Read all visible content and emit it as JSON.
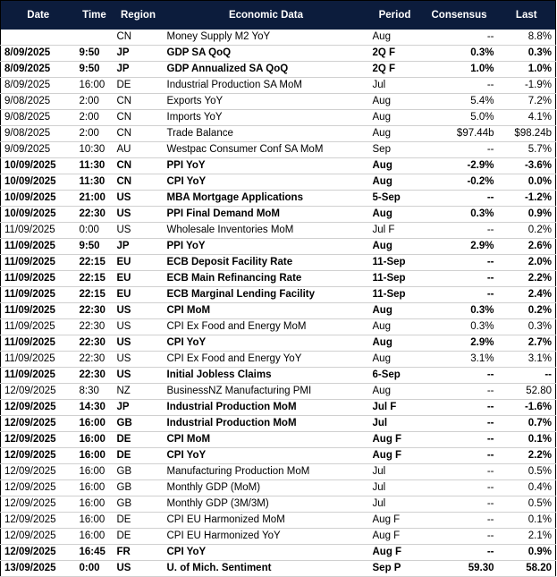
{
  "header": [
    "Date",
    "Time",
    "Region",
    "Economic Data",
    "Period",
    "Consensus",
    "Last"
  ],
  "rows": [
    {
      "cells": [
        null,
        null,
        "CN",
        "Money Supply M2 YoY",
        "Aug",
        "--",
        "8.8%"
      ],
      "bold": false
    },
    {
      "cells": [
        "8/09/2025",
        "9:50",
        "JP",
        "GDP SA QoQ",
        "2Q F",
        "0.3%",
        "0.3%"
      ],
      "bold": true
    },
    {
      "cells": [
        "8/09/2025",
        "9:50",
        "JP",
        "GDP Annualized SA QoQ",
        "2Q F",
        "1.0%",
        "1.0%"
      ],
      "bold": true
    },
    {
      "cells": [
        "8/09/2025",
        "16:00",
        "DE",
        "Industrial Production SA MoM",
        "Jul",
        "--",
        "-1.9%"
      ],
      "bold": false
    },
    {
      "cells": [
        "9/08/2025",
        "2:00",
        "CN",
        "Exports YoY",
        "Aug",
        "5.4%",
        "7.2%"
      ],
      "bold": false
    },
    {
      "cells": [
        "9/08/2025",
        "2:00",
        "CN",
        "Imports YoY",
        "Aug",
        "5.0%",
        "4.1%"
      ],
      "bold": false
    },
    {
      "cells": [
        "9/08/2025",
        "2:00",
        "CN",
        "Trade Balance",
        "Aug",
        "$97.44b",
        "$98.24b"
      ],
      "bold": false
    },
    {
      "cells": [
        "9/09/2025",
        "10:30",
        "AU",
        "Westpac Consumer Conf SA MoM",
        "Sep",
        "--",
        "5.7%"
      ],
      "bold": false
    },
    {
      "cells": [
        "10/09/2025",
        "11:30",
        "CN",
        "PPI YoY",
        "Aug",
        "-2.9%",
        "-3.6%"
      ],
      "bold": true
    },
    {
      "cells": [
        "10/09/2025",
        "11:30",
        "CN",
        "CPI YoY",
        "Aug",
        "-0.2%",
        "0.0%"
      ],
      "bold": true
    },
    {
      "cells": [
        "10/09/2025",
        "21:00",
        "US",
        "MBA Mortgage Applications",
        "5-Sep",
        "--",
        "-1.2%"
      ],
      "bold": true
    },
    {
      "cells": [
        "10/09/2025",
        "22:30",
        "US",
        "PPI Final Demand MoM",
        "Aug",
        "0.3%",
        "0.9%"
      ],
      "bold": true
    },
    {
      "cells": [
        "11/09/2025",
        "0:00",
        "US",
        "Wholesale Inventories MoM",
        "Jul F",
        "--",
        "0.2%"
      ],
      "bold": false
    },
    {
      "cells": [
        "11/09/2025",
        "9:50",
        "JP",
        "PPI YoY",
        "Aug",
        "2.9%",
        "2.6%"
      ],
      "bold": true
    },
    {
      "cells": [
        "11/09/2025",
        "22:15",
        "EU",
        "ECB Deposit Facility Rate",
        "11-Sep",
        "--",
        "2.0%"
      ],
      "bold": true
    },
    {
      "cells": [
        "11/09/2025",
        "22:15",
        "EU",
        "ECB Main Refinancing Rate",
        "11-Sep",
        "--",
        "2.2%"
      ],
      "bold": true
    },
    {
      "cells": [
        "11/09/2025",
        "22:15",
        "EU",
        "ECB Marginal Lending Facility",
        "11-Sep",
        "--",
        "2.4%"
      ],
      "bold": true
    },
    {
      "cells": [
        "11/09/2025",
        "22:30",
        "US",
        "CPI MoM",
        "Aug",
        "0.3%",
        "0.2%"
      ],
      "bold": true
    },
    {
      "cells": [
        "11/09/2025",
        "22:30",
        "US",
        "CPI Ex Food and Energy MoM",
        "Aug",
        "0.3%",
        "0.3%"
      ],
      "bold": false
    },
    {
      "cells": [
        "11/09/2025",
        "22:30",
        "US",
        "CPI YoY",
        "Aug",
        "2.9%",
        "2.7%"
      ],
      "bold": true
    },
    {
      "cells": [
        "11/09/2025",
        "22:30",
        "US",
        "CPI Ex Food and Energy YoY",
        "Aug",
        "3.1%",
        "3.1%"
      ],
      "bold": false
    },
    {
      "cells": [
        "11/09/2025",
        "22:30",
        "US",
        "Initial Jobless Claims",
        "6-Sep",
        "--",
        "--"
      ],
      "bold": true
    },
    {
      "cells": [
        "12/09/2025",
        "8:30",
        "NZ",
        "BusinessNZ Manufacturing PMI",
        "Aug",
        "--",
        "52.80"
      ],
      "bold": false
    },
    {
      "cells": [
        "12/09/2025",
        "14:30",
        "JP",
        "Industrial Production MoM",
        "Jul F",
        "--",
        "-1.6%"
      ],
      "bold": true
    },
    {
      "cells": [
        "12/09/2025",
        "16:00",
        "GB",
        "Industrial Production MoM",
        "Jul",
        "--",
        "0.7%"
      ],
      "bold": true
    },
    {
      "cells": [
        "12/09/2025",
        "16:00",
        "DE",
        "CPI MoM",
        "Aug F",
        "--",
        "0.1%"
      ],
      "bold": true
    },
    {
      "cells": [
        "12/09/2025",
        "16:00",
        "DE",
        "CPI YoY",
        "Aug F",
        "--",
        "2.2%"
      ],
      "bold": true
    },
    {
      "cells": [
        "12/09/2025",
        "16:00",
        "GB",
        "Manufacturing Production MoM",
        "Jul",
        "--",
        "0.5%"
      ],
      "bold": false
    },
    {
      "cells": [
        "12/09/2025",
        "16:00",
        "GB",
        "Monthly GDP (MoM)",
        "Jul",
        "--",
        "0.4%"
      ],
      "bold": false
    },
    {
      "cells": [
        "12/09/2025",
        "16:00",
        "GB",
        "Monthly GDP (3M/3M)",
        "Jul",
        "--",
        "0.5%"
      ],
      "bold": false
    },
    {
      "cells": [
        "12/09/2025",
        "16:00",
        "DE",
        "CPI EU Harmonized MoM",
        "Aug F",
        "--",
        "0.1%"
      ],
      "bold": false
    },
    {
      "cells": [
        "12/09/2025",
        "16:00",
        "DE",
        "CPI EU Harmonized YoY",
        "Aug F",
        "--",
        "2.1%"
      ],
      "bold": false
    },
    {
      "cells": [
        "12/09/2025",
        "16:45",
        "FR",
        "CPI YoY",
        "Aug F",
        "--",
        "0.9%"
      ],
      "bold": true
    },
    {
      "cells": [
        "13/09/2025",
        "0:00",
        "US",
        "U. of Mich. Sentiment",
        "Sep P",
        "59.30",
        "58.20"
      ],
      "bold": true
    }
  ]
}
